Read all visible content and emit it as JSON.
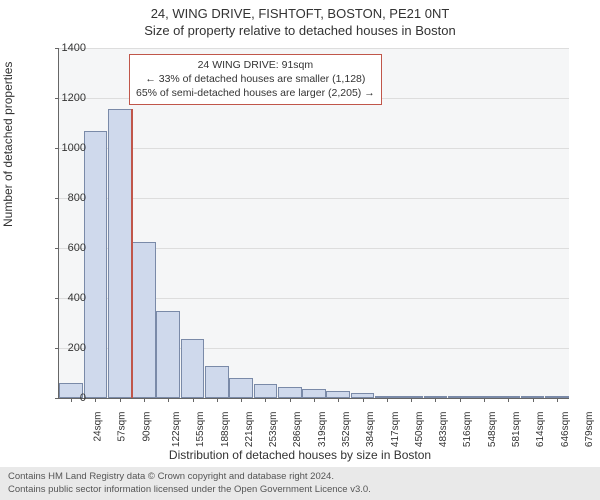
{
  "title": "24, WING DRIVE, FISHTOFT, BOSTON, PE21 0NT",
  "subtitle": "Size of property relative to detached houses in Boston",
  "ylabel": "Number of detached properties",
  "xlabel": "Distribution of detached houses by size in Boston",
  "ylim": [
    0,
    1400
  ],
  "ytick_step": 200,
  "yticks": [
    0,
    200,
    400,
    600,
    800,
    1000,
    1200,
    1400
  ],
  "categories": [
    "24sqm",
    "57sqm",
    "90sqm",
    "122sqm",
    "155sqm",
    "188sqm",
    "221sqm",
    "253sqm",
    "286sqm",
    "319sqm",
    "352sqm",
    "384sqm",
    "417sqm",
    "450sqm",
    "483sqm",
    "516sqm",
    "548sqm",
    "581sqm",
    "614sqm",
    "646sqm",
    "679sqm"
  ],
  "values": [
    60,
    1070,
    1155,
    625,
    350,
    235,
    130,
    80,
    55,
    45,
    35,
    30,
    20,
    10,
    10,
    5,
    5,
    5,
    5,
    3,
    0
  ],
  "bar_fill": "#cfd9ec",
  "bar_border": "#7a8aa8",
  "grid_color": "#dddddd",
  "background_color": "#f5f6f7",
  "marker": {
    "index_after": 2,
    "color": "#c0564a",
    "height_value": 1155
  },
  "annotation": {
    "lines": [
      "24 WING DRIVE: 91sqm",
      "← 33% of detached houses are smaller (1,128)",
      "65% of semi-detached houses are larger (2,205) →"
    ],
    "border_color": "#c0564a"
  },
  "footer": {
    "line1": "Contains HM Land Registry data © Crown copyright and database right 2024.",
    "line2": "Contains public sector information licensed under the Open Government Licence v3.0."
  }
}
